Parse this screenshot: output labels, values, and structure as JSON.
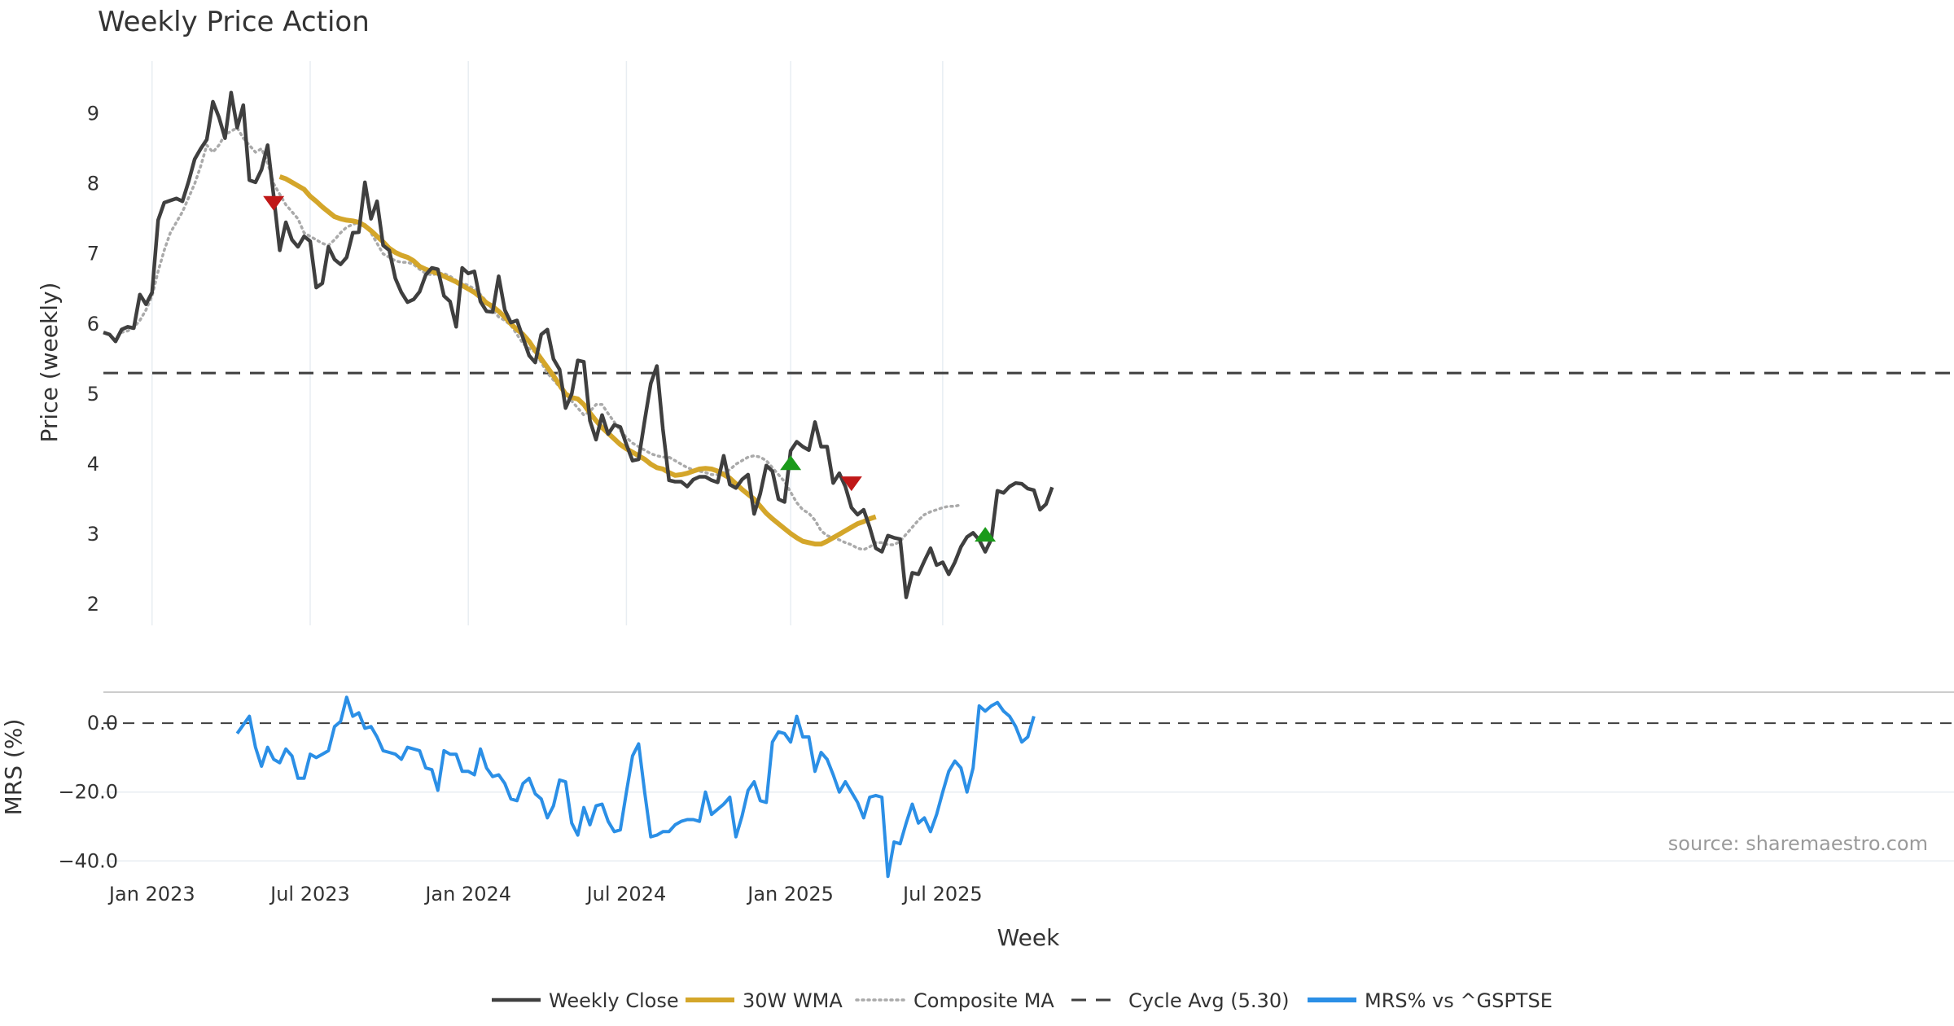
{
  "colors": {
    "close": "#3f3f3f",
    "wma": "#d4a62a",
    "composite": "#aaaaaa",
    "cycle": "#3f3f3f",
    "mrs": "#2b8fe6",
    "buy": "#1a9a1a",
    "sell": "#c01818",
    "grid": "#e8edf2"
  },
  "chart_data": {
    "type": "line",
    "title": "Weekly Price Action",
    "xlabel": "Week",
    "source": "source: sharemaestro.com",
    "x_ticks": [
      {
        "label": "Jan 2023",
        "week": 8
      },
      {
        "label": "Jul 2023",
        "week": 34
      },
      {
        "label": "Jan 2024",
        "week": 60
      },
      {
        "label": "Jul 2024",
        "week": 86
      },
      {
        "label": "Jan 2025",
        "week": 113
      },
      {
        "label": "Jul 2025",
        "week": 138
      }
    ],
    "price_panel": {
      "ylabel": "Price (weekly)",
      "ylim": [
        1.7,
        9.75
      ],
      "yticks": [
        2,
        3,
        4,
        5,
        6,
        7,
        8,
        9
      ],
      "cycle_avg": 5.3,
      "series": [
        {
          "name": "Weekly Close",
          "style": "solid",
          "start": 0,
          "values": [
            5.88,
            5.85,
            5.75,
            5.92,
            5.96,
            5.94,
            6.42,
            6.28,
            6.45,
            7.48,
            7.73,
            7.76,
            7.79,
            7.75,
            8.03,
            8.35,
            8.5,
            8.63,
            9.17,
            8.95,
            8.65,
            9.3,
            8.8,
            9.12,
            8.05,
            8.02,
            8.2,
            8.55,
            7.82,
            7.05,
            7.45,
            7.2,
            7.1,
            7.25,
            7.18,
            6.52,
            6.58,
            7.1,
            6.92,
            6.85,
            6.95,
            7.3,
            7.31,
            8.02,
            7.5,
            7.75,
            7.12,
            7.05,
            6.65,
            6.45,
            6.31,
            6.35,
            6.46,
            6.7,
            6.8,
            6.78,
            6.4,
            6.32,
            5.96,
            6.8,
            6.72,
            6.75,
            6.32,
            6.18,
            6.17,
            6.68,
            6.2,
            6.02,
            6.05,
            5.8,
            5.55,
            5.45,
            5.85,
            5.92,
            5.5,
            5.35,
            4.8,
            5.0,
            5.48,
            5.46,
            4.62,
            4.35,
            4.7,
            4.43,
            4.56,
            4.53,
            4.28,
            4.05,
            4.07,
            4.62,
            5.15,
            5.4,
            4.5,
            3.77,
            3.75,
            3.75,
            3.68,
            3.78,
            3.82,
            3.82,
            3.77,
            3.74,
            4.12,
            3.71,
            3.66,
            3.78,
            3.85,
            3.29,
            3.58,
            3.98,
            3.9,
            3.5,
            3.46,
            4.19,
            4.32,
            4.25,
            4.2,
            4.6,
            4.25,
            4.25,
            3.73,
            3.87,
            3.68,
            3.38,
            3.28,
            3.35,
            3.1,
            2.8,
            2.75,
            2.98,
            2.95,
            2.93,
            2.1,
            2.45,
            2.43,
            2.62,
            2.8,
            2.56,
            2.6,
            2.43,
            2.6,
            2.82,
            2.96,
            3.02,
            2.92,
            2.75,
            2.93,
            3.62,
            3.59,
            3.68,
            3.73,
            3.72,
            3.65,
            3.63,
            3.35,
            3.43,
            3.67
          ]
        },
        {
          "name": "Composite MA",
          "style": "dotted",
          "start": 3,
          "values": [
            5.88,
            5.9,
            5.95,
            6.05,
            6.2,
            6.4,
            6.75,
            7.05,
            7.3,
            7.45,
            7.6,
            7.8,
            8.0,
            8.25,
            8.55,
            8.45,
            8.55,
            8.7,
            8.75,
            8.8,
            8.65,
            8.55,
            8.45,
            8.5,
            8.3,
            8.0,
            7.85,
            7.7,
            7.6,
            7.5,
            7.3,
            7.25,
            7.2,
            7.15,
            7.12,
            7.2,
            7.3,
            7.38,
            7.42,
            7.45,
            7.42,
            7.3,
            7.15,
            7.0,
            6.95,
            6.9,
            6.88,
            6.88,
            6.85,
            6.78,
            6.72,
            6.7,
            6.72,
            6.72,
            6.68,
            6.62,
            6.58,
            6.55,
            6.5,
            6.42,
            6.32,
            6.2,
            6.1,
            6.05,
            5.98,
            5.85,
            5.72,
            5.65,
            5.6,
            5.45,
            5.3,
            5.2,
            5.1,
            5.0,
            4.9,
            4.8,
            4.7,
            4.75,
            4.85,
            4.85,
            4.72,
            4.6,
            4.48,
            4.38,
            4.3,
            4.25,
            4.2,
            4.15,
            4.12,
            4.1,
            4.1,
            4.05,
            4.0,
            3.95,
            3.92,
            3.9,
            3.88,
            3.85,
            3.85,
            3.88,
            3.92,
            4.0,
            4.05,
            4.1,
            4.12,
            4.1,
            4.05,
            3.95,
            3.85,
            3.75,
            3.6,
            3.45,
            3.35,
            3.3,
            3.2,
            3.05,
            2.98,
            2.95,
            2.92,
            2.88,
            2.85,
            2.8,
            2.78,
            2.82,
            2.88,
            2.88,
            2.85,
            2.85,
            2.9,
            3.0,
            3.1,
            3.2,
            3.28,
            3.32,
            3.35,
            3.38,
            3.4,
            3.4,
            3.42
          ]
        },
        {
          "name": "30W WMA",
          "style": "solid-thick",
          "start": 29,
          "values": [
            8.1,
            8.07,
            8.02,
            7.97,
            7.92,
            7.82,
            7.75,
            7.67,
            7.6,
            7.53,
            7.5,
            7.48,
            7.47,
            7.45,
            7.4,
            7.33,
            7.25,
            7.17,
            7.08,
            7.02,
            6.98,
            6.95,
            6.9,
            6.82,
            6.78,
            6.75,
            6.72,
            6.68,
            6.64,
            6.6,
            6.55,
            6.5,
            6.45,
            6.38,
            6.3,
            6.25,
            6.18,
            6.1,
            6.0,
            5.92,
            5.85,
            5.75,
            5.62,
            5.5,
            5.38,
            5.26,
            5.13,
            5.0,
            4.95,
            4.93,
            4.85,
            4.73,
            4.62,
            4.52,
            4.44,
            4.36,
            4.28,
            4.22,
            4.17,
            4.12,
            4.07,
            4.0,
            3.95,
            3.93,
            3.88,
            3.84,
            3.85,
            3.87,
            3.9,
            3.93,
            3.94,
            3.93,
            3.9,
            3.85,
            3.8,
            3.72,
            3.64,
            3.57,
            3.5,
            3.4,
            3.3,
            3.22,
            3.15,
            3.08,
            3.01,
            2.95,
            2.9,
            2.88,
            2.86,
            2.86,
            2.9,
            2.95,
            3.0,
            3.05,
            3.1,
            3.15,
            3.18,
            3.22,
            3.25
          ]
        }
      ],
      "signals": [
        {
          "type": "sell",
          "week": 28,
          "value": 7.72
        },
        {
          "type": "buy",
          "week": 113,
          "value": 4.02
        },
        {
          "type": "sell",
          "week": 123,
          "value": 3.72
        },
        {
          "type": "buy",
          "week": 145,
          "value": 3.0
        }
      ]
    },
    "mrs_panel": {
      "ylabel": "MRS (%)",
      "ylim": [
        -43,
        9
      ],
      "yticks": [
        0,
        -20,
        -40
      ],
      "ytick_labels": [
        "0.0",
        "−20.0",
        "−40.0"
      ],
      "zero_line": 0.0,
      "series": [
        {
          "name": "MRS% vs ^GSPTSE",
          "style": "solid",
          "start": 22,
          "values": [
            -3,
            -0.5,
            2,
            -7,
            -12.5,
            -7,
            -10.5,
            -11.5,
            -7.5,
            -9.5,
            -16,
            -16,
            -9,
            -10,
            -9,
            -8,
            -1,
            0.5,
            7.5,
            2,
            3,
            -1.5,
            -1,
            -4,
            -8,
            -8.5,
            -9,
            -10.5,
            -7,
            -7.5,
            -8,
            -13,
            -13.5,
            -19.5,
            -8,
            -9,
            -9,
            -14,
            -14,
            -15,
            -7.5,
            -13,
            -15.5,
            -15,
            -17.5,
            -22,
            -22.5,
            -17.5,
            -16,
            -20.5,
            -22,
            -27.5,
            -24,
            -16.5,
            -17,
            -29,
            -32.5,
            -24.5,
            -29.5,
            -24,
            -23.5,
            -28.5,
            -31.5,
            -31,
            -20,
            -9.5,
            -6,
            -20,
            -33,
            -32.5,
            -31.5,
            -31.5,
            -29.5,
            -28.5,
            -28,
            -28,
            -28.5,
            -20,
            -26.5,
            -25,
            -23.5,
            -21.5,
            -33,
            -27,
            -19.5,
            -17,
            -22.5,
            -23,
            -5.5,
            -2.5,
            -3,
            -5.5,
            2,
            -4,
            -4,
            -14,
            -8.5,
            -10.5,
            -15,
            -20,
            -17,
            -20,
            -23,
            -27.5,
            -21.5,
            -21,
            -21.5,
            -44.5,
            -34.5,
            -35,
            -29,
            -23.5,
            -29,
            -27.5,
            -31.5,
            -26.5,
            -20,
            -14,
            -11,
            -13,
            -20,
            -13,
            5,
            3.5,
            5,
            6,
            3.5,
            2,
            -1,
            -5.5,
            -4,
            2
          ]
        }
      ]
    },
    "legend": [
      {
        "label": "Weekly Close",
        "style": "solid",
        "color_key": "close"
      },
      {
        "label": "30W WMA",
        "style": "solid-thick",
        "color_key": "wma"
      },
      {
        "label": "Composite MA",
        "style": "dotted",
        "color_key": "composite"
      },
      {
        "label": "Cycle Avg (5.30)",
        "style": "dashed",
        "color_key": "cycle"
      },
      {
        "label": "MRS% vs ^GSPTSE",
        "style": "solid-thick",
        "color_key": "mrs"
      }
    ]
  }
}
